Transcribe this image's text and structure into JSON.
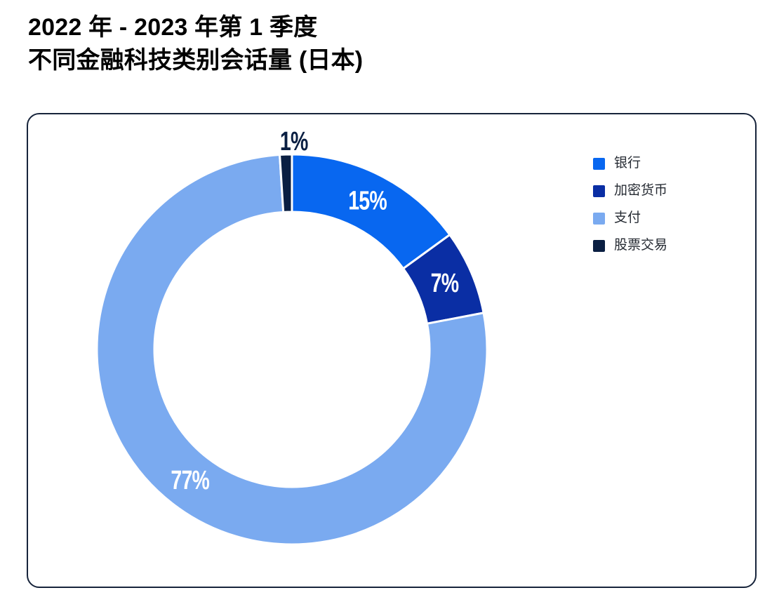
{
  "title": {
    "line1": "2022 年 - 2023 年第 1 季度",
    "line2": "不同金融科技类别会话量 (日本)"
  },
  "chart_data": {
    "type": "pie",
    "variant": "donut",
    "title": "2022 年 - 2023 年第 1 季度 不同金融科技类别会话量 (日本)",
    "categories": [
      "银行",
      "加密货币",
      "支付",
      "股票交易"
    ],
    "values": [
      15,
      7,
      77,
      1
    ],
    "labels": [
      "15%",
      "7%",
      "77%",
      "1%"
    ],
    "unit": "%",
    "colors": [
      "#0867f0",
      "#0a2ea4",
      "#7aaaf0",
      "#0a1f42"
    ],
    "start_angle_deg": 0,
    "direction": "clockwise",
    "legend_position": "right",
    "label_color_inside": "#ffffff",
    "slice_gap_color": "#ffffff"
  },
  "style": {
    "card_border": "#17243b",
    "title_color": "#000000",
    "legend_text_color": "#262b33",
    "background": "#ffffff"
  }
}
